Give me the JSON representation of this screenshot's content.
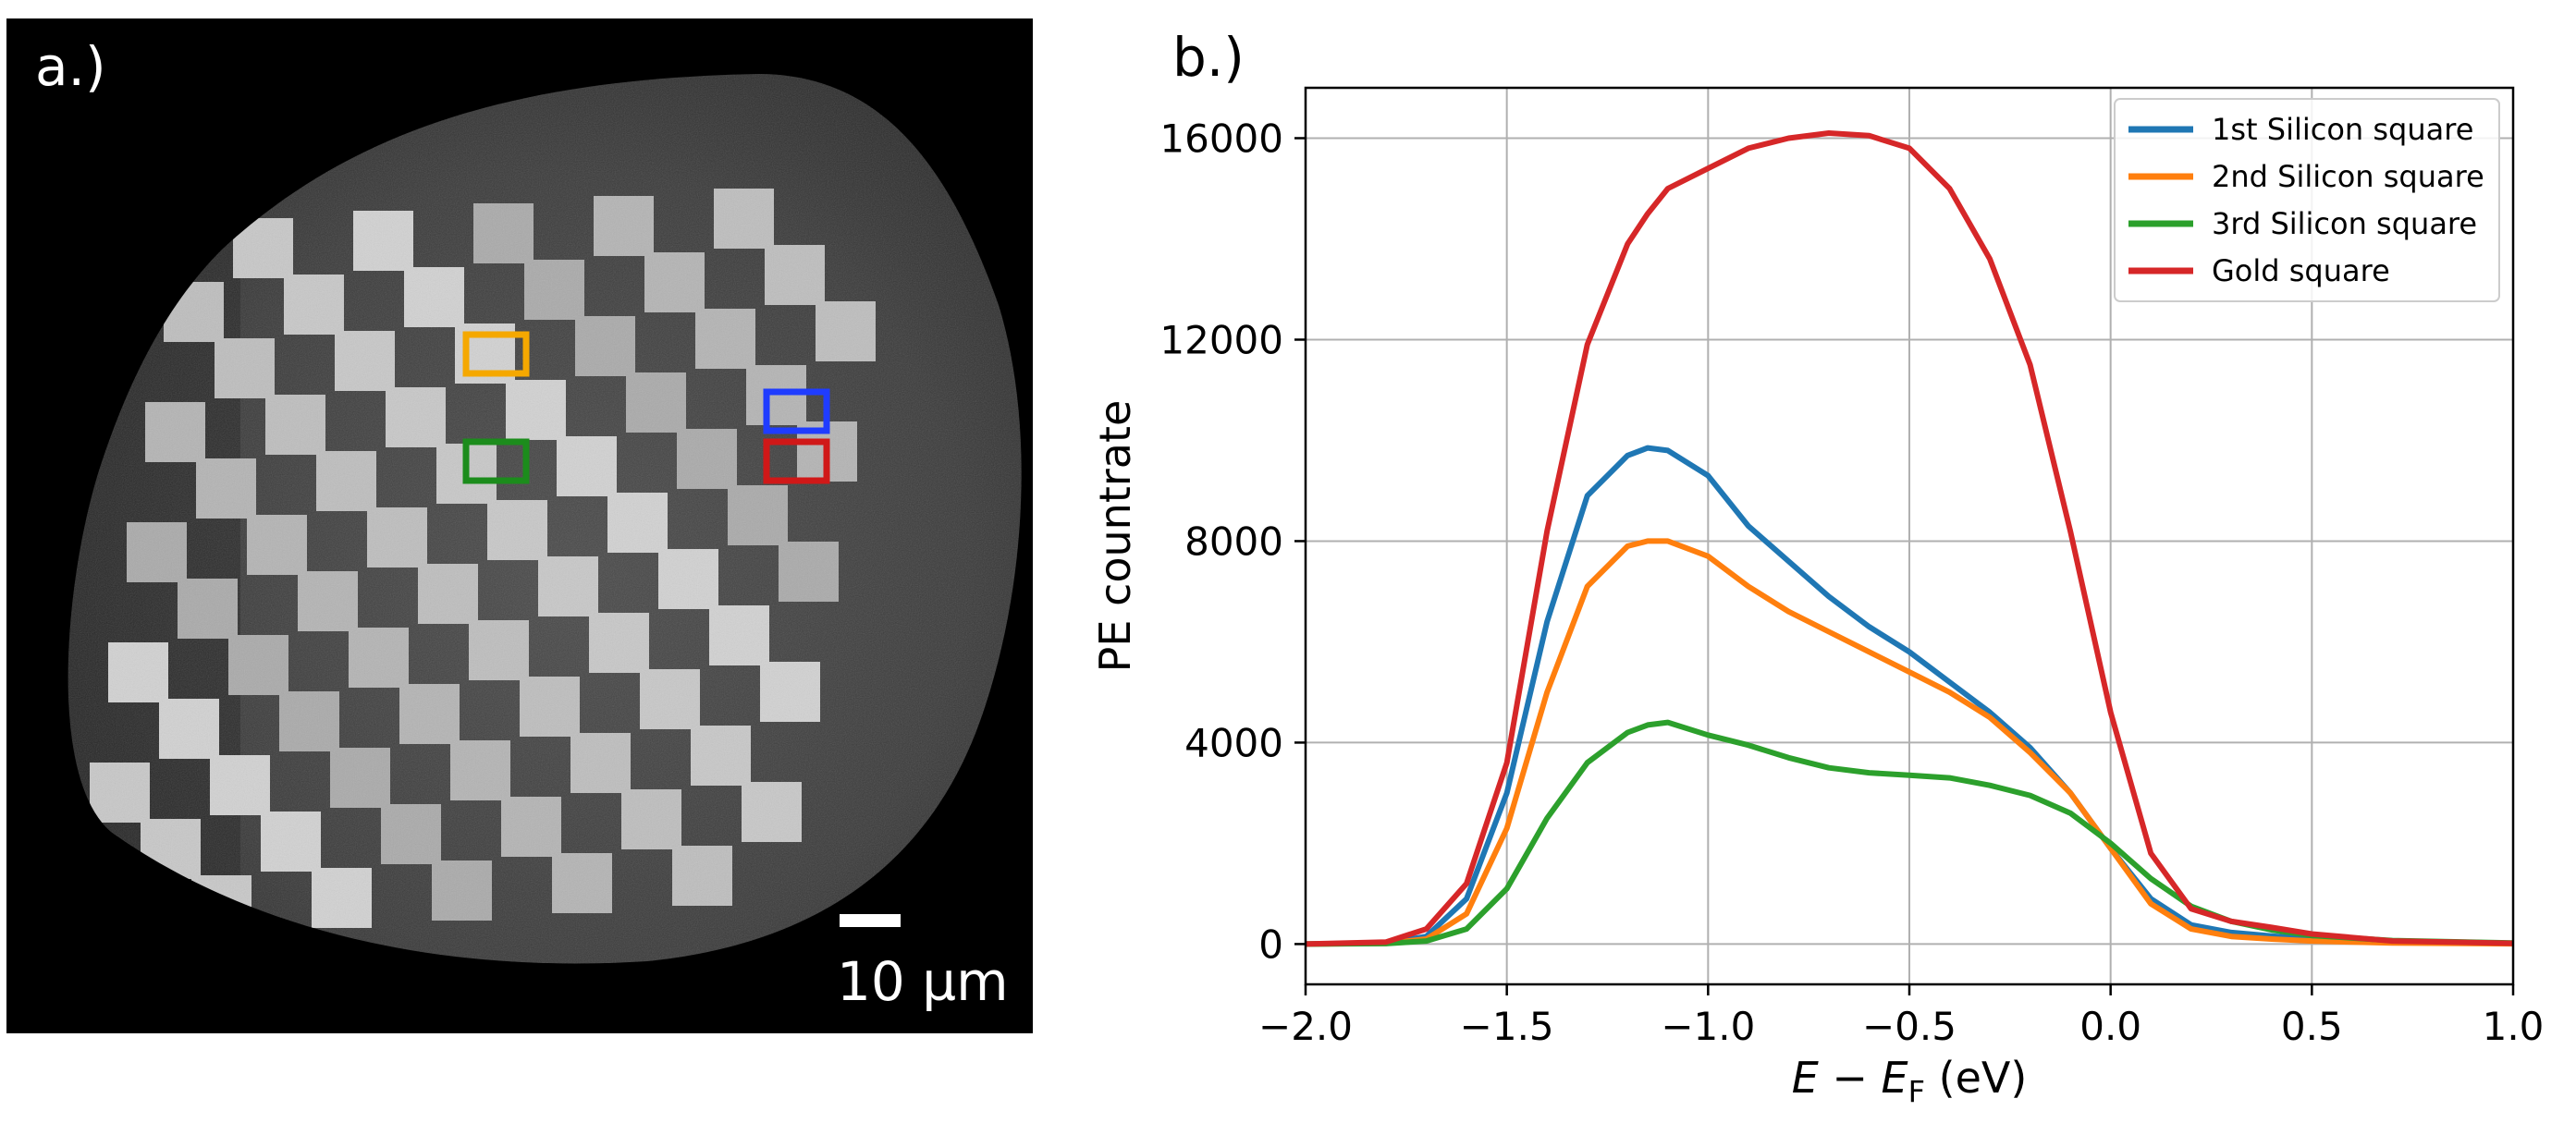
{
  "panel_a": {
    "label": "a.)",
    "scale_bar_label": "10 µm",
    "marker_colors": {
      "orange": "#f5a800",
      "blue": "#1f3cff",
      "green": "#1c8c1c",
      "red": "#d01818"
    }
  },
  "panel_b": {
    "label": "b.)"
  },
  "chart_data": {
    "type": "line",
    "title": "",
    "xlabel_main": "E − E",
    "xlabel_sub": "F",
    "xlabel_unit": " (eV)",
    "ylabel": "PE countrate",
    "xlim": [
      -2.0,
      1.0
    ],
    "ylim": [
      -800,
      17000
    ],
    "xticks": [
      -2.0,
      -1.5,
      -1.0,
      -0.5,
      0.0,
      0.5,
      1.0
    ],
    "xtick_labels": [
      "−2.0",
      "−1.5",
      "−1.0",
      "−0.5",
      "0.0",
      "0.5",
      "1.0"
    ],
    "yticks": [
      0,
      4000,
      8000,
      12000,
      16000
    ],
    "ytick_labels": [
      "0",
      "4000",
      "8000",
      "12000",
      "16000"
    ],
    "grid": true,
    "legend_position": "top-right",
    "x": [
      -2.0,
      -1.8,
      -1.7,
      -1.6,
      -1.5,
      -1.4,
      -1.3,
      -1.2,
      -1.15,
      -1.1,
      -1.0,
      -0.9,
      -0.8,
      -0.7,
      -0.6,
      -0.5,
      -0.4,
      -0.3,
      -0.2,
      -0.1,
      0.0,
      0.1,
      0.2,
      0.3,
      0.4,
      0.5,
      0.7,
      1.0
    ],
    "series": [
      {
        "name": "1st Silicon square",
        "color": "#1f77b4",
        "values": [
          0,
          20,
          150,
          900,
          3000,
          6400,
          8900,
          9700,
          9850,
          9800,
          9300,
          8300,
          7600,
          6900,
          6300,
          5800,
          5200,
          4600,
          3900,
          3000,
          1900,
          900,
          380,
          230,
          160,
          100,
          40,
          10
        ]
      },
      {
        "name": "2nd Silicon square",
        "color": "#ff7f0e",
        "values": [
          0,
          15,
          100,
          600,
          2300,
          5000,
          7100,
          7900,
          8000,
          8000,
          7700,
          7100,
          6600,
          6200,
          5800,
          5400,
          5000,
          4500,
          3800,
          3000,
          1900,
          800,
          300,
          150,
          100,
          60,
          20,
          5
        ]
      },
      {
        "name": "3rd Silicon square",
        "color": "#2ca02c",
        "values": [
          0,
          10,
          60,
          300,
          1100,
          2500,
          3600,
          4200,
          4350,
          4400,
          4150,
          3950,
          3700,
          3500,
          3400,
          3350,
          3300,
          3150,
          2950,
          2600,
          2000,
          1300,
          750,
          450,
          280,
          170,
          70,
          20
        ]
      },
      {
        "name": "Gold square",
        "color": "#d62728",
        "values": [
          0,
          40,
          300,
          1200,
          3600,
          8200,
          11900,
          13900,
          14500,
          15000,
          15400,
          15800,
          16000,
          16100,
          16050,
          15800,
          15000,
          13600,
          11500,
          8200,
          4600,
          1800,
          700,
          450,
          330,
          200,
          60,
          15
        ]
      }
    ]
  }
}
